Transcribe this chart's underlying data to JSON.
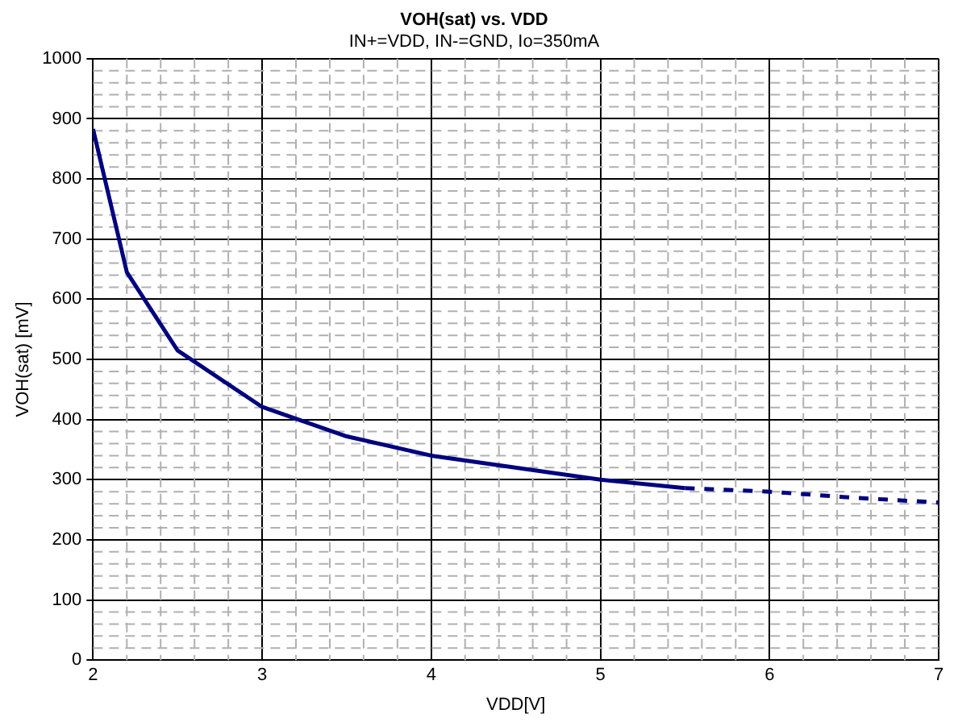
{
  "chart_data": {
    "type": "line",
    "title": "VOH(sat) vs. VDD",
    "subtitle": "IN+=VDD, IN-=GND, Io=350mA",
    "xlabel": "VDD[V]",
    "ylabel": "VOH(sat) [mV]",
    "series": [
      {
        "color": "#000080",
        "line_style": "solid",
        "x": [
          2,
          2.2,
          2.5,
          3,
          3.5,
          4,
          5,
          5.5
        ],
        "values": [
          883,
          645,
          515,
          421,
          372,
          340,
          300,
          286
        ]
      },
      {
        "color": "#000080",
        "line_style": "dashed",
        "x": [
          5.5,
          6,
          6.5,
          7
        ],
        "values": [
          286,
          280,
          270,
          262
        ]
      }
    ],
    "xlim": [
      2,
      7
    ],
    "xticks": [
      2,
      3,
      4,
      5,
      6,
      7
    ],
    "ylim": [
      0,
      1000
    ],
    "yticks": [
      0,
      100,
      200,
      300,
      400,
      500,
      600,
      700,
      800,
      900,
      1000
    ],
    "grid": true,
    "marker": "none",
    "legend": false
  }
}
